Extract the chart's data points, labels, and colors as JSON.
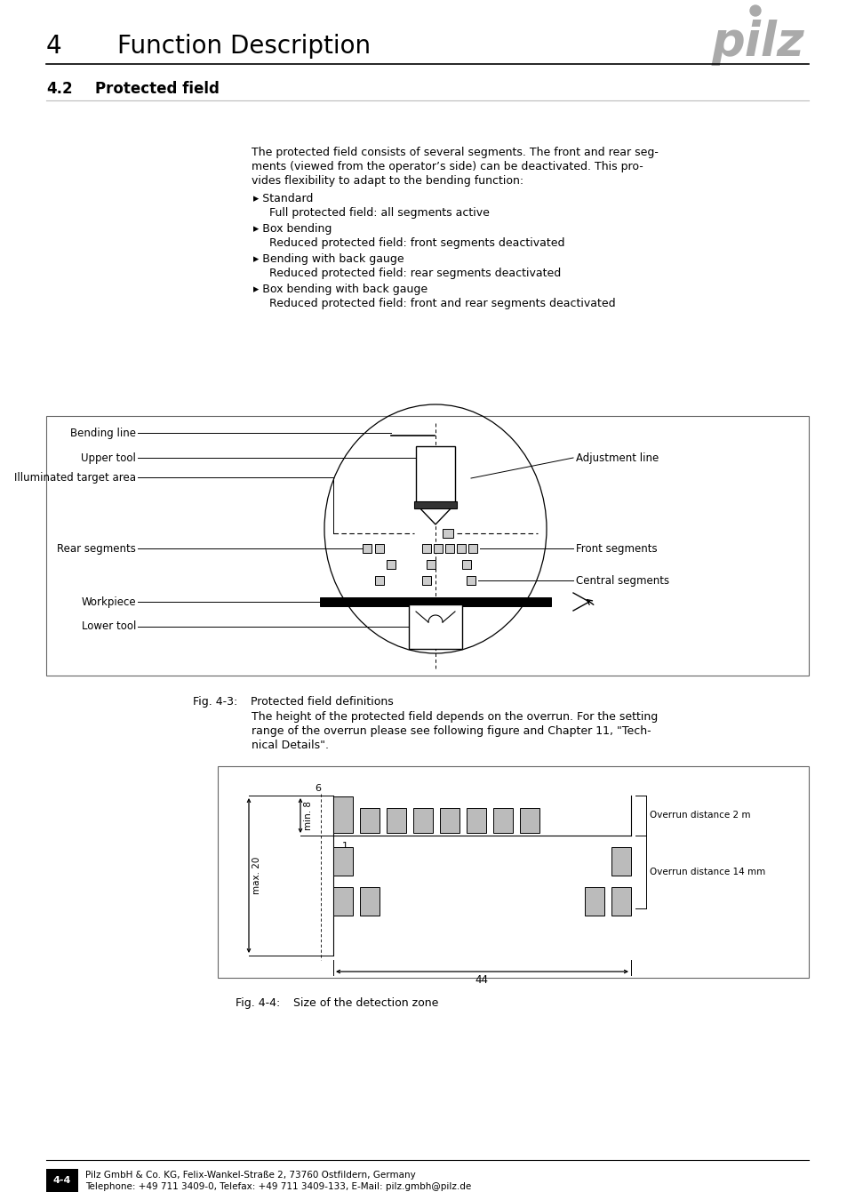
{
  "page_header_number": "4",
  "page_header_title": "Function Description",
  "section_number": "4.2",
  "section_title": "Protected field",
  "body_lines": [
    "The protected field consists of several segments. The front and rear seg-",
    "ments (viewed from the operator’s side) can be deactivated. This pro-",
    "vides flexibility to adapt to the bending function:"
  ],
  "bullet_items": [
    [
      "▸ Standard",
      "Full protected field: all segments active"
    ],
    [
      "▸ Box bending",
      "Reduced protected field: front segments deactivated"
    ],
    [
      "▸ Bending with back gauge",
      "Reduced protected field: rear segments deactivated"
    ],
    [
      "▸ Box bending with back gauge",
      "Reduced protected field: front and rear segments deactivated"
    ]
  ],
  "fig1_caption_left": "Fig. 4-3:",
  "fig1_caption_right": "Protected field definitions",
  "fig1_labels_left": [
    "Bending line",
    "Upper tool",
    "Illuminated target area",
    "Rear segments",
    "Workpiece",
    "Lower tool"
  ],
  "fig1_labels_right": [
    "Adjustment line",
    "Front segments",
    "Central segments"
  ],
  "between_lines": [
    "The height of the protected field depends on the overrun. For the setting",
    "range of the overrun please see following figure and Chapter 11, \"Tech-",
    "nical Details\"."
  ],
  "fig2_caption_left": "Fig. 4-4:",
  "fig2_caption_right": "Size of the detection zone",
  "footer_page": "4-4",
  "footer_company": "Pilz GmbH & Co. KG, Felix-Wankel-Straße 2, 73760 Ostfildern, Germany",
  "footer_contact": "Telephone: +49 711 3409-0, Telefax: +49 711 3409-133, E-Mail: pilz.gmbh@pilz.de"
}
